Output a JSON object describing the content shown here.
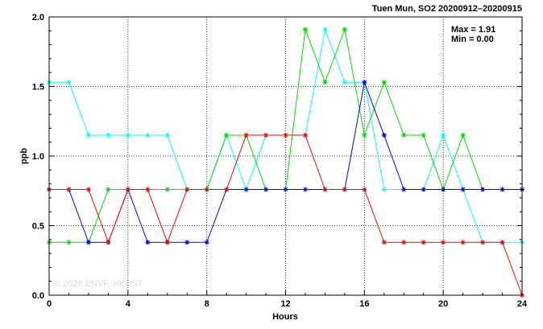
{
  "chart_data": {
    "type": "line",
    "title": "Tuen Mun, SO2 20200912–20200915",
    "xlabel": "Hours",
    "ylabel": "ppb",
    "xlim": [
      0,
      24
    ],
    "ylim": [
      0,
      2.0
    ],
    "x_ticks": [
      "0",
      "4",
      "8",
      "12",
      "16",
      "20",
      "24"
    ],
    "y_ticks": [
      "0.0",
      "0.5",
      "1.0",
      "1.5",
      "2.0"
    ],
    "grid": true,
    "stats": {
      "max": "Max = 1.91",
      "min": "Min = 0.00"
    },
    "watermark": "© 2026  ENVF, HKUST",
    "x": [
      0,
      1,
      2,
      3,
      4,
      5,
      6,
      7,
      8,
      9,
      10,
      11,
      12,
      13,
      14,
      15,
      16,
      17,
      18,
      19,
      20,
      21,
      22,
      23,
      24
    ],
    "series": [
      {
        "color": "#00ffff",
        "values": [
          1.53,
          1.53,
          1.15,
          1.15,
          1.15,
          1.15,
          1.15,
          0.76,
          0.76,
          1.15,
          0.76,
          1.15,
          1.15,
          1.15,
          1.91,
          1.53,
          1.53,
          0.76,
          0.76,
          0.76,
          1.15,
          0.76,
          0.38,
          0.38,
          0.38
        ]
      },
      {
        "color": "#00dd00",
        "values": [
          0.38,
          0.38,
          0.38,
          0.76,
          0.76,
          0.76,
          0.76,
          0.76,
          0.76,
          1.15,
          1.15,
          0.76,
          0.76,
          1.91,
          1.53,
          1.91,
          1.15,
          1.53,
          1.15,
          1.15,
          0.76,
          1.15,
          0.76,
          0.76,
          0.76
        ]
      },
      {
        "color": "#0000ff",
        "values": [
          0.76,
          0.76,
          0.38,
          0.38,
          0.76,
          0.38,
          0.38,
          0.38,
          0.38,
          0.76,
          0.76,
          0.76,
          0.76,
          0.76,
          0.76,
          0.76,
          1.53,
          1.15,
          0.76,
          0.76,
          0.76,
          0.76,
          0.76,
          0.76,
          0.76
        ]
      },
      {
        "color": "#ff0000",
        "values": [
          0.76,
          0.76,
          0.76,
          0.38,
          0.76,
          0.76,
          0.38,
          0.76,
          0.76,
          0.76,
          1.15,
          1.15,
          1.15,
          1.15,
          0.76,
          0.76,
          0.76,
          0.38,
          0.38,
          0.38,
          0.38,
          0.38,
          0.38,
          0.38,
          0.0
        ]
      }
    ]
  }
}
